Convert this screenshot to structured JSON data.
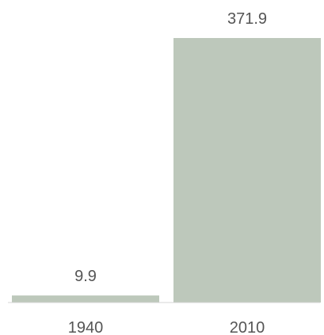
{
  "chart_data": {
    "type": "bar",
    "categories": [
      "1940",
      "2010"
    ],
    "values": [
      9.9,
      371.9
    ],
    "value_labels": [
      "9.9",
      "371.9"
    ],
    "title": "",
    "xlabel": "",
    "ylabel": "",
    "ylim": [
      0,
      371.9
    ],
    "grid": false,
    "legend": "none",
    "colors": {
      "bar": "#bdc8bb",
      "baseline": "#d6d6d6",
      "text": "#555555"
    }
  }
}
